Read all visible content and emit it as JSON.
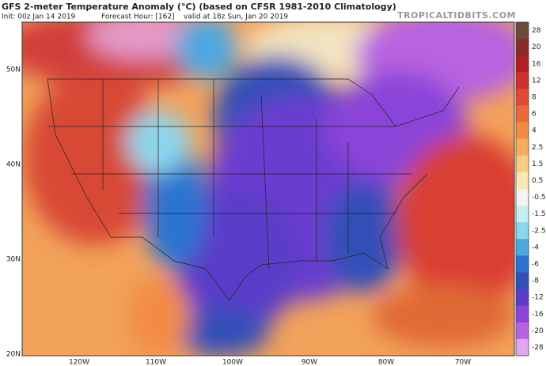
{
  "header": {
    "title": "GFS 2-meter Temperature Anomaly (°C) (based on CFSR 1981-2010 Climatology)",
    "init": "Init: 00z Jan 14 2019",
    "forecast_hour": "Forecast Hour: [162]",
    "valid": "valid at 18z Sun, Jan 20 2019",
    "brand": "TROPICALTIDBITS.COM"
  },
  "map": {
    "lat_labels": [
      "50N",
      "40N",
      "30N",
      "20N"
    ],
    "lon_labels": [
      "120W",
      "110W",
      "100W",
      "90W",
      "80W",
      "70W"
    ]
  },
  "colorbar": {
    "levels": [
      {
        "label": "28",
        "color": "#6e4a3a"
      },
      {
        "label": "20",
        "color": "#8a2a2a"
      },
      {
        "label": "16",
        "color": "#b02020"
      },
      {
        "label": "12",
        "color": "#cf3030"
      },
      {
        "label": "8",
        "color": "#e04a30"
      },
      {
        "label": "6",
        "color": "#ec6a35"
      },
      {
        "label": "4",
        "color": "#f28c45"
      },
      {
        "label": "2.5",
        "color": "#f6ad5e"
      },
      {
        "label": "1.5",
        "color": "#f9cd84"
      },
      {
        "label": "0.5",
        "color": "#fbe8b4"
      },
      {
        "label": "-0.5",
        "color": "#f4f4f4"
      },
      {
        "label": "-1.5",
        "color": "#c8eef4"
      },
      {
        "label": "-2.5",
        "color": "#8cd6ec"
      },
      {
        "label": "-4",
        "color": "#4ea8e0"
      },
      {
        "label": "-6",
        "color": "#2a74d0"
      },
      {
        "label": "-8",
        "color": "#3050b8"
      },
      {
        "label": "-12",
        "color": "#5a3cc8"
      },
      {
        "label": "-16",
        "color": "#8a44d8"
      },
      {
        "label": "-20",
        "color": "#b864e0"
      },
      {
        "label": "-28",
        "color": "#e0a8ec"
      }
    ]
  }
}
